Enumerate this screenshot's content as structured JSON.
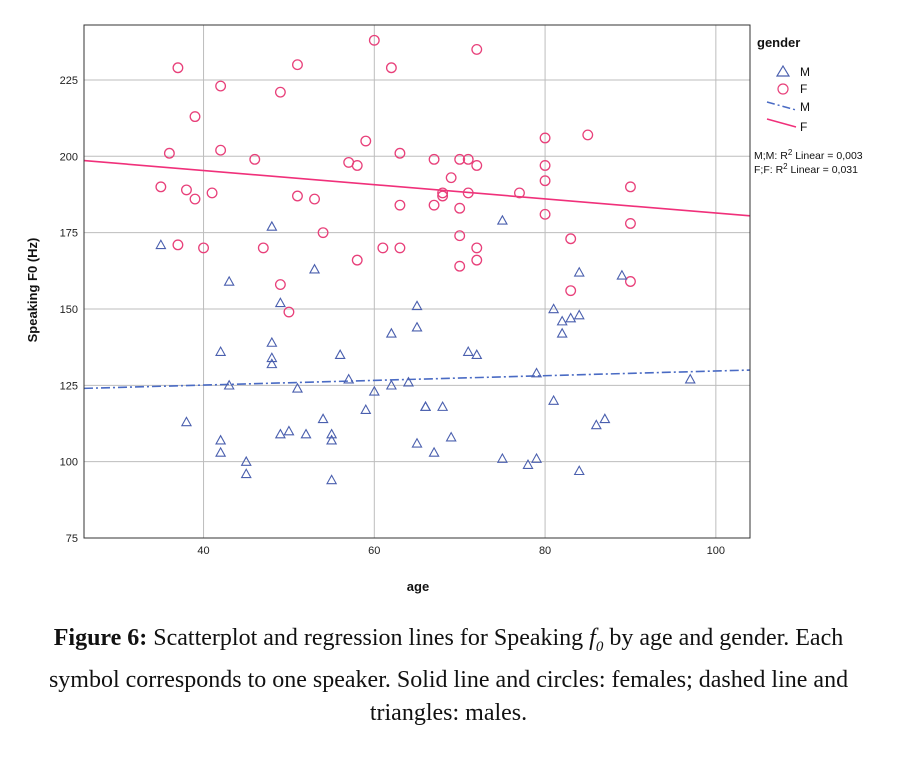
{
  "chart_data": {
    "type": "scatter",
    "xlabel": "age",
    "ylabel": "Speaking F0 (Hz)",
    "xlim": [
      26,
      104
    ],
    "ylim": [
      75,
      243
    ],
    "x_ticks": [
      40,
      60,
      80,
      100
    ],
    "y_ticks": [
      75,
      100,
      125,
      150,
      175,
      200,
      225
    ],
    "grid": true,
    "legend": {
      "title": "gender",
      "position": "top-right",
      "marker_entries": [
        {
          "label": "M",
          "marker": "triangle",
          "color": "#4a5fae"
        },
        {
          "label": "F",
          "marker": "circle",
          "color": "#e8407a"
        }
      ],
      "line_entries": [
        {
          "label": "M",
          "style": "dashdot",
          "color": "#4a6bc4"
        },
        {
          "label": "F",
          "style": "solid",
          "color": "#f0307a"
        }
      ]
    },
    "annotations": {
      "r2_male_prefix": "M;M: R",
      "r2_male_suffix": " Linear = 0,003",
      "r2_female_prefix": "F;F: R",
      "r2_female_suffix": " Linear = 0,031",
      "superscript": "2"
    },
    "series": [
      {
        "name": "F",
        "marker": "circle",
        "color": "#e8407a",
        "points": [
          [
            37,
            229
          ],
          [
            35,
            190
          ],
          [
            36,
            201
          ],
          [
            37,
            171
          ],
          [
            38,
            189
          ],
          [
            39,
            186
          ],
          [
            39,
            213
          ],
          [
            40,
            170
          ],
          [
            41,
            188
          ],
          [
            42,
            223
          ],
          [
            42,
            202
          ],
          [
            46,
            199
          ],
          [
            47,
            170
          ],
          [
            49,
            221
          ],
          [
            49,
            158
          ],
          [
            50,
            149
          ],
          [
            51,
            230
          ],
          [
            51,
            187
          ],
          [
            53,
            186
          ],
          [
            54,
            175
          ],
          [
            57,
            198
          ],
          [
            58,
            197
          ],
          [
            58,
            166
          ],
          [
            59,
            205
          ],
          [
            60,
            238
          ],
          [
            61,
            170
          ],
          [
            62,
            229
          ],
          [
            63,
            201
          ],
          [
            63,
            184
          ],
          [
            63,
            170
          ],
          [
            67,
            199
          ],
          [
            67,
            184
          ],
          [
            68,
            188
          ],
          [
            68,
            187
          ],
          [
            69,
            193
          ],
          [
            70,
            199
          ],
          [
            70,
            183
          ],
          [
            70,
            174
          ],
          [
            70,
            164
          ],
          [
            71,
            199
          ],
          [
            71,
            188
          ],
          [
            72,
            197
          ],
          [
            72,
            170
          ],
          [
            72,
            166
          ],
          [
            72,
            235
          ],
          [
            77,
            188
          ],
          [
            80,
            206
          ],
          [
            80,
            197
          ],
          [
            80,
            192
          ],
          [
            80,
            181
          ],
          [
            83,
            173
          ],
          [
            83,
            156
          ],
          [
            85,
            207
          ],
          [
            90,
            190
          ],
          [
            90,
            178
          ],
          [
            90,
            159
          ]
        ]
      },
      {
        "name": "M",
        "marker": "triangle",
        "color": "#4a5fae",
        "points": [
          [
            35,
            171
          ],
          [
            38,
            113
          ],
          [
            42,
            136
          ],
          [
            42,
            107
          ],
          [
            42,
            103
          ],
          [
            43,
            159
          ],
          [
            43,
            125
          ],
          [
            45,
            100
          ],
          [
            45,
            96
          ],
          [
            48,
            177
          ],
          [
            48,
            139
          ],
          [
            48,
            134
          ],
          [
            48,
            132
          ],
          [
            49,
            152
          ],
          [
            49,
            109
          ],
          [
            50,
            110
          ],
          [
            51,
            124
          ],
          [
            52,
            109
          ],
          [
            53,
            163
          ],
          [
            54,
            114
          ],
          [
            55,
            109
          ],
          [
            55,
            107
          ],
          [
            55,
            94
          ],
          [
            56,
            135
          ],
          [
            57,
            127
          ],
          [
            59,
            117
          ],
          [
            60,
            123
          ],
          [
            62,
            142
          ],
          [
            62,
            125
          ],
          [
            64,
            126
          ],
          [
            65,
            151
          ],
          [
            65,
            144
          ],
          [
            65,
            106
          ],
          [
            66,
            118
          ],
          [
            66,
            118
          ],
          [
            67,
            103
          ],
          [
            68,
            118
          ],
          [
            69,
            108
          ],
          [
            71,
            136
          ],
          [
            72,
            135
          ],
          [
            75,
            179
          ],
          [
            75,
            101
          ],
          [
            78,
            99
          ],
          [
            79,
            129
          ],
          [
            79,
            101
          ],
          [
            81,
            150
          ],
          [
            81,
            120
          ],
          [
            82,
            146
          ],
          [
            82,
            142
          ],
          [
            83,
            147
          ],
          [
            84,
            162
          ],
          [
            84,
            148
          ],
          [
            84,
            97
          ],
          [
            86,
            112
          ],
          [
            87,
            114
          ],
          [
            89,
            161
          ],
          [
            97,
            127
          ]
        ]
      }
    ],
    "regression": [
      {
        "name": "F",
        "style": "solid",
        "color": "#f0307a",
        "x": [
          26,
          104
        ],
        "y": [
          198.6,
          180.5
        ]
      },
      {
        "name": "M",
        "style": "dashdot",
        "color": "#4a6bc4",
        "x": [
          26,
          104
        ],
        "y": [
          124.0,
          130.0
        ]
      }
    ]
  },
  "caption": {
    "lead": "Figure 6:",
    "text_before": " Scatterplot and regression lines for Speaking ",
    "symbol": "f",
    "subscript": "0",
    "text_after": " by age and gender. Each symbol corresponds to one speaker. Solid line and circles: females; dashed line and triangles: males."
  }
}
